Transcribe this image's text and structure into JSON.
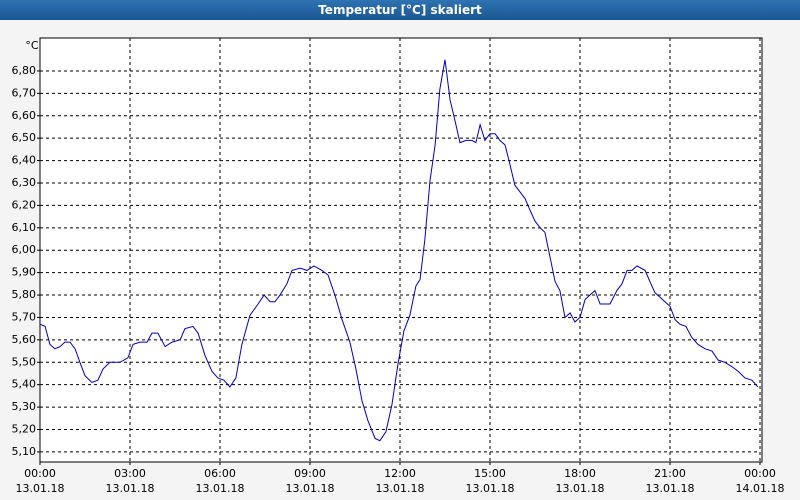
{
  "title": "Temperatur [°C] skaliert",
  "chart_data": {
    "type": "line",
    "y_unit": "°C",
    "grid": true,
    "xlim": [
      0,
      24
    ],
    "xticks": [
      {
        "value": 0,
        "label": "00:00",
        "date": "13.01.18"
      },
      {
        "value": 3,
        "label": "03:00",
        "date": "13.01.18"
      },
      {
        "value": 6,
        "label": "06:00",
        "date": "13.01.18"
      },
      {
        "value": 9,
        "label": "09:00",
        "date": "13.01.18"
      },
      {
        "value": 12,
        "label": "12:00",
        "date": "13.01.18"
      },
      {
        "value": 15,
        "label": "15:00",
        "date": "13.01.18"
      },
      {
        "value": 18,
        "label": "18:00",
        "date": "13.01.18"
      },
      {
        "value": 21,
        "label": "21:00",
        "date": "13.01.18"
      },
      {
        "value": 24,
        "label": "00:00",
        "date": "14.01.18"
      }
    ],
    "ylim": [
      5.055,
      6.947
    ],
    "yticks": [
      {
        "value": 5.1,
        "label": "5,10"
      },
      {
        "value": 5.2,
        "label": "5,20"
      },
      {
        "value": 5.3,
        "label": "5,30"
      },
      {
        "value": 5.4,
        "label": "5,40"
      },
      {
        "value": 5.5,
        "label": "5,50"
      },
      {
        "value": 5.6,
        "label": "5,60"
      },
      {
        "value": 5.7,
        "label": "5,70"
      },
      {
        "value": 5.8,
        "label": "5,80"
      },
      {
        "value": 5.9,
        "label": "5,90"
      },
      {
        "value": 6.0,
        "label": "6,00"
      },
      {
        "value": 6.1,
        "label": "6,10"
      },
      {
        "value": 6.2,
        "label": "6,20"
      },
      {
        "value": 6.3,
        "label": "6,30"
      },
      {
        "value": 6.4,
        "label": "6,40"
      },
      {
        "value": 6.5,
        "label": "6,50"
      },
      {
        "value": 6.6,
        "label": "6,60"
      },
      {
        "value": 6.7,
        "label": "6,70"
      },
      {
        "value": 6.8,
        "label": "6,80"
      }
    ],
    "x": [
      0,
      0.17,
      0.33,
      0.5,
      0.67,
      0.83,
      1,
      1.17,
      1.33,
      1.5,
      1.73,
      1.93,
      2.1,
      2.33,
      2.67,
      2.93,
      3.1,
      3.33,
      3.57,
      3.73,
      3.93,
      4.17,
      4.4,
      4.67,
      4.83,
      5.1,
      5.27,
      5.5,
      5.73,
      5.93,
      6.13,
      6.33,
      6.53,
      6.73,
      7,
      7.27,
      7.47,
      7.67,
      7.83,
      8,
      8.23,
      8.4,
      8.67,
      8.9,
      9.13,
      9.4,
      9.6,
      9.83,
      10.07,
      10.33,
      10.53,
      10.73,
      10.93,
      11.17,
      11.33,
      11.53,
      11.73,
      11.93,
      12.13,
      12.33,
      12.53,
      12.67,
      12.83,
      13,
      13.17,
      13.33,
      13.5,
      13.67,
      13.83,
      14,
      14.2,
      14.4,
      14.53,
      14.67,
      14.83,
      15,
      15.17,
      15.33,
      15.5,
      15.67,
      15.83,
      16,
      16.17,
      16.33,
      16.5,
      16.67,
      16.83,
      17,
      17.17,
      17.33,
      17.5,
      17.67,
      17.83,
      18,
      18.17,
      18.33,
      18.5,
      18.67,
      19,
      19.23,
      19.4,
      19.57,
      19.73,
      19.9,
      20.17,
      20.33,
      20.5,
      20.67,
      20.83,
      21,
      21.17,
      21.33,
      21.53,
      21.73,
      21.93,
      22.17,
      22.4,
      22.6,
      22.83,
      23.07,
      23.27,
      23.5,
      23.73,
      23.93
    ],
    "series": [
      {
        "color": "#0000c0",
        "values": [
          5.67,
          5.66,
          5.58,
          5.56,
          5.57,
          5.59,
          5.59,
          5.56,
          5.5,
          5.44,
          5.41,
          5.42,
          5.47,
          5.5,
          5.5,
          5.52,
          5.58,
          5.59,
          5.59,
          5.63,
          5.63,
          5.57,
          5.59,
          5.6,
          5.65,
          5.66,
          5.63,
          5.53,
          5.46,
          5.43,
          5.42,
          5.39,
          5.43,
          5.58,
          5.71,
          5.76,
          5.8,
          5.77,
          5.77,
          5.8,
          5.85,
          5.91,
          5.92,
          5.91,
          5.93,
          5.91,
          5.89,
          5.8,
          5.69,
          5.59,
          5.47,
          5.33,
          5.24,
          5.16,
          5.15,
          5.19,
          5.31,
          5.49,
          5.64,
          5.71,
          5.84,
          5.87,
          6.05,
          6.31,
          6.47,
          6.72,
          6.85,
          6.67,
          6.58,
          6.48,
          6.49,
          6.49,
          6.48,
          6.56,
          6.49,
          6.52,
          6.52,
          6.49,
          6.47,
          6.38,
          6.29,
          6.26,
          6.23,
          6.18,
          6.13,
          6.1,
          6.08,
          5.97,
          5.86,
          5.82,
          5.7,
          5.72,
          5.68,
          5.7,
          5.78,
          5.8,
          5.82,
          5.76,
          5.76,
          5.82,
          5.85,
          5.91,
          5.91,
          5.93,
          5.91,
          5.86,
          5.81,
          5.79,
          5.77,
          5.75,
          5.69,
          5.67,
          5.66,
          5.61,
          5.58,
          5.56,
          5.55,
          5.51,
          5.5,
          5.48,
          5.46,
          5.43,
          5.42,
          5.39
        ]
      }
    ]
  }
}
